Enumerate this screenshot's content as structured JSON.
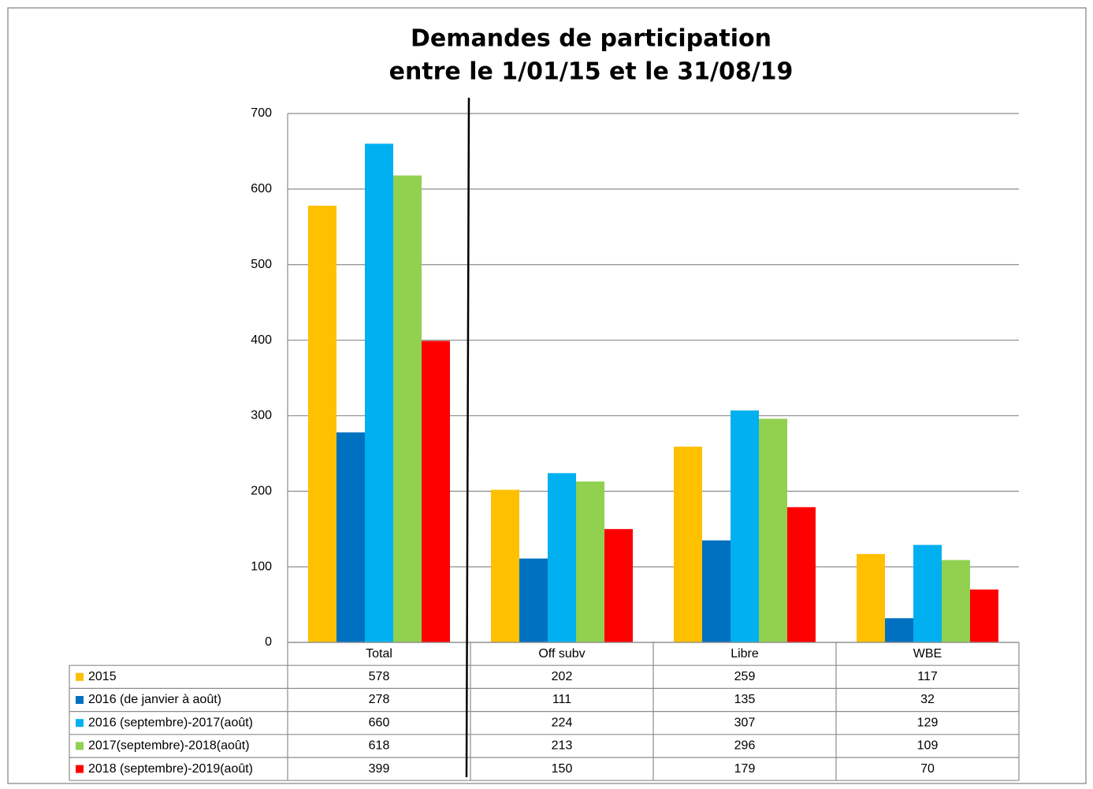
{
  "chart_data": {
    "type": "bar",
    "title": [
      "Demandes de participation",
      "entre le 1/01/15 et le 31/08/19"
    ],
    "categories": [
      "Total",
      "Off subv",
      "Libre",
      "WBE"
    ],
    "series": [
      {
        "name": "2015",
        "color": "#FFC000",
        "values": [
          578,
          202,
          259,
          117
        ]
      },
      {
        "name": "2016 (de janvier à août)",
        "color": "#0070C0",
        "values": [
          278,
          111,
          135,
          32
        ]
      },
      {
        "name": "2016 (septembre)-2017(août)",
        "color": "#00B0F0",
        "values": [
          660,
          224,
          307,
          129
        ]
      },
      {
        "name": "2017(septembre)-2018(août)",
        "color": "#92D050",
        "values": [
          618,
          213,
          296,
          109
        ]
      },
      {
        "name": "2018 (septembre)-2019(août)",
        "color": "#FF0000",
        "values": [
          399,
          150,
          179,
          70
        ]
      }
    ],
    "ylim": [
      0,
      700
    ],
    "yticks": [
      0,
      100,
      200,
      300,
      400,
      500,
      600,
      700
    ],
    "grid": true,
    "data_table": true
  }
}
